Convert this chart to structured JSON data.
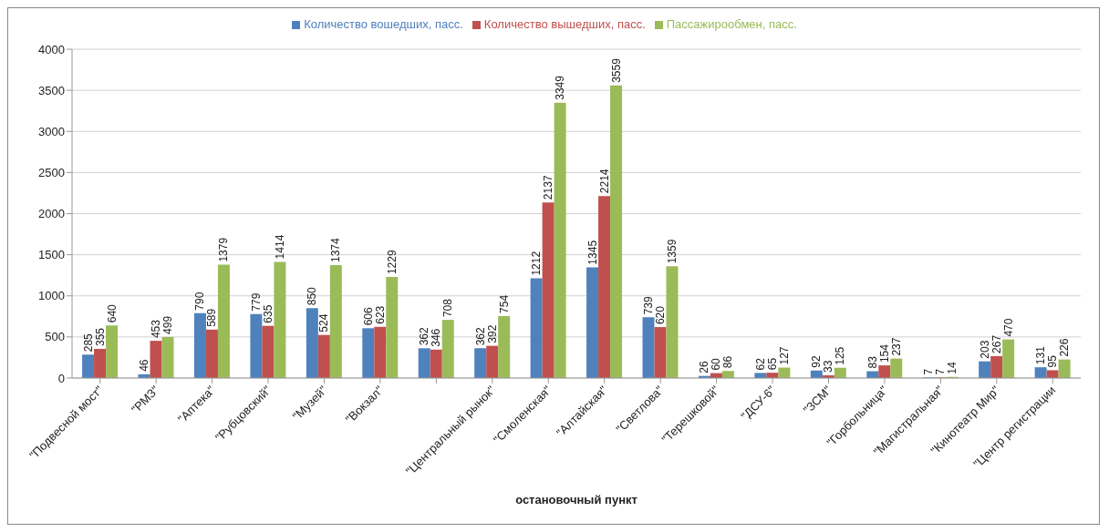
{
  "chart_data": {
    "type": "bar",
    "xlabel": "остановочный пункт",
    "categories": [
      "\"Подвесной мост\"",
      "\"РМЗ\"",
      "\"Аптека\"",
      "\"Рубцовский\"",
      "\"Музей\"",
      "\"Вокзал\"",
      null,
      "\"Центральный рынок\"",
      "\"Смоленская\"",
      "\"Алтайская\"",
      "\"Светлова\"",
      "\"Терешковой\"",
      "\"ДСУ-6\"",
      "\"ЗСМ\"",
      "\"Горбольница\"",
      "\"Магистральная\"",
      "\"Кинотеатр Мир\"",
      "\"Центр регистрации"
    ],
    "series": [
      {
        "name": "Количество вошедших, пасс.",
        "color": "#4f81bd",
        "values": [
          285,
          46,
          790,
          779,
          850,
          606,
          362,
          362,
          1212,
          1345,
          739,
          26,
          62,
          92,
          83,
          7,
          203,
          131
        ]
      },
      {
        "name": "Количество вышедших, пасс.",
        "color": "#c0504d",
        "values": [
          355,
          453,
          589,
          635,
          524,
          623,
          346,
          392,
          2137,
          2214,
          620,
          60,
          65,
          33,
          154,
          7,
          267,
          95
        ]
      },
      {
        "name": "Пассажирообмен, пасс.",
        "color": "#9bbb59",
        "values": [
          640,
          499,
          1379,
          1414,
          1374,
          1229,
          708,
          754,
          3349,
          3559,
          1359,
          86,
          127,
          125,
          237,
          14,
          470,
          226
        ]
      }
    ],
    "ylim": [
      0,
      4000
    ],
    "yticks": [
      0,
      500,
      1000,
      1500,
      2000,
      2500,
      3000,
      3500,
      4000
    ],
    "grid": "y",
    "legend": "top",
    "data_labels": true
  }
}
